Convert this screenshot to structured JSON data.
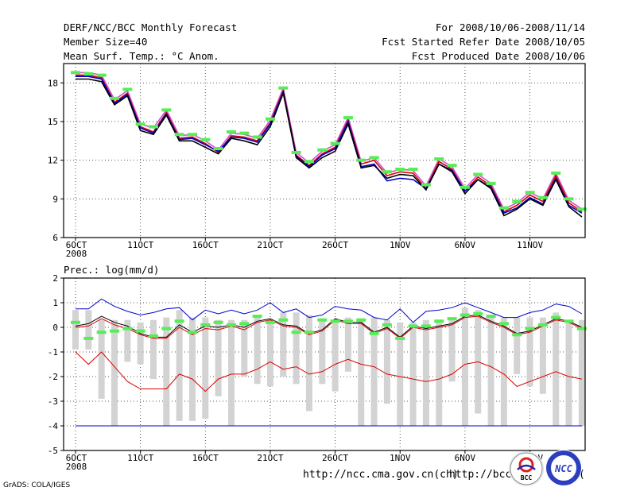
{
  "header": {
    "title": "DERF/NCC/BCC Monthly Forecast",
    "member_size": "Member Size=40",
    "variable": "Mean Surf. Temp.: °C Anom.",
    "period": "For 2008/10/06-2008/11/14",
    "started": "Fcst Started Refer Date 2008/10/05",
    "produced": "Fcst Produced Date 2008/10/06"
  },
  "footer": {
    "url1": "http://ncc.cma.gov.cn(ch)",
    "url2": "http://bcc.",
    "url2_tail": "(",
    "grads": "GrADS: COLA/IGES",
    "logo_bcc": "BCC",
    "logo_ncc": "NCC"
  },
  "colors": {
    "blue": "#0000cc",
    "red": "#dd0000",
    "pink": "#cc55cc",
    "green": "#55ee55",
    "gray": "#d3d3d3",
    "black": "#000000"
  },
  "chart_data": [
    {
      "type": "line",
      "title": "Mean Surf. Temp.: °C Anom.",
      "ylim": [
        6,
        19.5
      ],
      "yticks": [
        6,
        9,
        12,
        15,
        18
      ],
      "xticks": [
        0,
        5,
        10,
        15,
        20,
        25,
        30,
        35
      ],
      "xticklabels": [
        "6OCT",
        "11OCT",
        "16OCT",
        "21OCT",
        "26OCT",
        "1NOV",
        "6NOV",
        "11NOV"
      ],
      "xsublabel": "2008",
      "grid": true,
      "x": [
        0,
        1,
        2,
        3,
        4,
        5,
        6,
        7,
        8,
        9,
        10,
        11,
        12,
        13,
        14,
        15,
        16,
        17,
        18,
        19,
        20,
        21,
        22,
        23,
        24,
        25,
        26,
        27,
        28,
        29,
        30,
        31,
        32,
        33,
        34,
        35,
        36,
        37,
        38,
        39
      ],
      "series": [
        {
          "name": "upper",
          "color": "pink",
          "values": [
            18.8,
            18.8,
            18.6,
            16.7,
            17.4,
            14.8,
            14.5,
            15.9,
            13.9,
            14.0,
            13.5,
            12.8,
            14.1,
            14.0,
            13.7,
            15.1,
            17.6,
            12.6,
            11.8,
            12.7,
            13.2,
            15.3,
            11.9,
            12.2,
            11.0,
            11.3,
            11.2,
            10.0,
            12.1,
            11.5,
            9.8,
            10.9,
            10.2,
            8.2,
            8.7,
            9.5,
            9.0,
            11.0,
            8.9,
            8.2
          ]
        },
        {
          "name": "mid",
          "color": "red",
          "values": [
            18.6,
            18.6,
            18.4,
            16.5,
            17.2,
            14.6,
            14.2,
            15.7,
            13.7,
            13.8,
            13.3,
            12.6,
            13.9,
            13.8,
            13.5,
            14.9,
            17.4,
            12.4,
            11.6,
            12.5,
            13.0,
            15.1,
            11.7,
            12.0,
            10.8,
            11.1,
            11.0,
            9.8,
            11.9,
            11.3,
            9.6,
            10.7,
            10.0,
            8.0,
            8.5,
            9.3,
            8.8,
            10.8,
            8.7,
            8.0
          ]
        },
        {
          "name": "blue",
          "color": "blue",
          "values": [
            18.5,
            18.5,
            18.3,
            16.4,
            17.1,
            14.5,
            14.1,
            15.6,
            13.6,
            13.7,
            13.2,
            12.7,
            13.8,
            13.7,
            13.4,
            14.8,
            17.3,
            12.3,
            11.5,
            12.4,
            12.9,
            15.0,
            11.5,
            11.7,
            10.4,
            10.6,
            10.5,
            9.8,
            11.7,
            11.2,
            9.6,
            10.5,
            9.9,
            7.9,
            8.3,
            9.1,
            8.6,
            10.6,
            8.5,
            7.9
          ]
        },
        {
          "name": "lower",
          "color": "black",
          "values": [
            18.3,
            18.3,
            18.1,
            16.3,
            17.0,
            14.3,
            14.0,
            15.5,
            13.5,
            13.5,
            13.0,
            12.5,
            13.7,
            13.5,
            13.2,
            14.6,
            17.2,
            12.2,
            11.4,
            12.2,
            12.7,
            14.8,
            11.4,
            11.6,
            10.6,
            10.9,
            10.8,
            9.7,
            11.7,
            11.1,
            9.4,
            10.5,
            9.8,
            7.7,
            8.2,
            9.0,
            8.5,
            10.5,
            8.4,
            7.6
          ]
        }
      ],
      "markers": {
        "name": "obs",
        "color": "green",
        "values": [
          18.8,
          18.7,
          18.6,
          16.8,
          17.5,
          14.8,
          14.6,
          15.9,
          14.0,
          14.0,
          13.6,
          12.9,
          14.2,
          14.1,
          13.8,
          15.2,
          17.6,
          12.6,
          11.9,
          12.8,
          13.3,
          15.3,
          12.0,
          12.2,
          11.1,
          11.3,
          11.3,
          10.1,
          12.1,
          11.6,
          9.9,
          10.9,
          10.2,
          8.3,
          8.8,
          9.5,
          9.1,
          11.0,
          9.0,
          8.2
        ]
      }
    },
    {
      "type": "line",
      "title": "Prec.: log(mm/d)",
      "ylim": [
        -5,
        2
      ],
      "yticks": [
        -5,
        -4,
        -3,
        -2,
        -1,
        0,
        1,
        2
      ],
      "xticks": [
        0,
        5,
        10,
        15,
        20,
        25,
        30,
        35
      ],
      "xticklabels": [
        "6OCT",
        "11OCT",
        "16OCT",
        "21OCT",
        "26OCT",
        "1NOV",
        "6NOV",
        "11NOV"
      ],
      "xsublabel": "2008",
      "grid": true,
      "x": [
        0,
        1,
        2,
        3,
        4,
        5,
        6,
        7,
        8,
        9,
        10,
        11,
        12,
        13,
        14,
        15,
        16,
        17,
        18,
        19,
        20,
        21,
        22,
        23,
        24,
        25,
        26,
        27,
        28,
        29,
        30,
        31,
        32,
        33,
        34,
        35,
        36,
        37,
        38,
        39
      ],
      "bars": {
        "name": "ensemble spread",
        "color": "gray",
        "low": [
          -0.9,
          -0.9,
          -2.9,
          -4.0,
          -1.4,
          -1.5,
          -2.1,
          -4.0,
          -3.8,
          -3.8,
          -3.7,
          -2.8,
          -4.0,
          -2.0,
          -2.3,
          -2.4,
          -2.0,
          -2.3,
          -3.4,
          -2.3,
          -2.6,
          -1.8,
          -4.0,
          -4.0,
          -3.1,
          -4.0,
          -4.0,
          -4.0,
          -4.0,
          -2.2,
          -4.0,
          -3.5,
          -4.0,
          -4.0,
          -1.9,
          -2.4,
          -2.7,
          -4.0,
          -4.0,
          -4.0
        ],
        "high": [
          0.7,
          0.7,
          0.3,
          0.3,
          0.3,
          0.2,
          0.3,
          0.4,
          0.7,
          0.4,
          0.4,
          0.3,
          0.3,
          0.3,
          0.5,
          0.3,
          0.6,
          0.6,
          0.5,
          0.3,
          0.3,
          0.4,
          0.3,
          0.4,
          0.3,
          0.2,
          0.2,
          0.3,
          0.3,
          0.3,
          0.8,
          0.7,
          0.4,
          0.4,
          0.4,
          0.4,
          0.4,
          0.6,
          0.3,
          0.3
        ]
      },
      "series": [
        {
          "name": "max",
          "color": "blue",
          "values": [
            0.75,
            0.75,
            1.15,
            0.85,
            0.65,
            0.5,
            0.6,
            0.75,
            0.8,
            0.3,
            0.7,
            0.55,
            0.7,
            0.55,
            0.7,
            1.0,
            0.6,
            0.75,
            0.4,
            0.5,
            0.85,
            0.75,
            0.7,
            0.4,
            0.3,
            0.75,
            0.2,
            0.65,
            0.7,
            0.8,
            1.0,
            0.8,
            0.6,
            0.4,
            0.4,
            0.6,
            0.7,
            0.95,
            0.85,
            0.55
          ]
        },
        {
          "name": "ensemble mean",
          "color": "black",
          "values": [
            0.05,
            0.15,
            0.45,
            0.2,
            0.05,
            -0.25,
            -0.4,
            -0.4,
            0.1,
            -0.2,
            0.05,
            0.0,
            0.1,
            0.0,
            0.25,
            0.35,
            0.1,
            0.05,
            -0.25,
            -0.1,
            0.35,
            0.2,
            0.2,
            -0.2,
            0.0,
            -0.4,
            0.05,
            -0.05,
            0.05,
            0.15,
            0.45,
            0.5,
            0.25,
            0.05,
            -0.25,
            -0.15,
            0.1,
            0.35,
            0.25,
            0.0
          ]
        },
        {
          "name": "median",
          "color": "red",
          "values": [
            0.0,
            0.05,
            0.35,
            0.1,
            -0.05,
            -0.3,
            -0.45,
            -0.45,
            0.0,
            -0.3,
            -0.05,
            -0.1,
            0.05,
            -0.1,
            0.2,
            0.3,
            0.05,
            0.0,
            -0.3,
            -0.15,
            0.3,
            0.15,
            0.15,
            -0.25,
            -0.05,
            -0.45,
            0.0,
            -0.1,
            0.0,
            0.1,
            0.4,
            0.45,
            0.2,
            0.0,
            -0.3,
            -0.2,
            0.05,
            0.3,
            0.2,
            -0.05
          ]
        },
        {
          "name": "lower",
          "color": "red",
          "values": [
            -1.0,
            -1.5,
            -1.0,
            -1.6,
            -2.2,
            -2.5,
            -2.5,
            -2.5,
            -1.9,
            -2.1,
            -2.6,
            -2.1,
            -1.9,
            -1.9,
            -1.7,
            -1.4,
            -1.7,
            -1.6,
            -1.9,
            -1.8,
            -1.5,
            -1.3,
            -1.5,
            -1.6,
            -1.9,
            -2.0,
            -2.1,
            -2.2,
            -2.1,
            -1.9,
            -1.5,
            -1.4,
            -1.6,
            -1.9,
            -2.4,
            -2.2,
            -2.0,
            -1.8,
            -2.0,
            -2.1
          ]
        },
        {
          "name": "floor",
          "color": "blue",
          "values": [
            -4.0,
            -4.0,
            -4.0,
            -4.0,
            -4.0,
            -4.0,
            -4.0,
            -4.0,
            -4.0,
            -4.0,
            -4.0,
            -4.0,
            -4.0,
            -4.0,
            -4.0,
            -4.0,
            -4.0,
            -4.0,
            -4.0,
            -4.0,
            -4.0,
            -4.0,
            -4.0,
            -4.0,
            -4.0,
            -4.0,
            -4.0,
            -4.0,
            -4.0,
            -4.0,
            -4.0,
            -4.0,
            -4.0,
            -4.0,
            -4.0,
            -4.0,
            -4.0,
            -4.0,
            -4.0,
            -4.0
          ]
        }
      ],
      "markers": {
        "name": "obs",
        "color": "green",
        "values": [
          0.2,
          -0.45,
          -0.2,
          -0.15,
          -0.05,
          -0.15,
          -0.35,
          -0.05,
          0.25,
          -0.2,
          0.1,
          0.2,
          0.1,
          0.15,
          0.45,
          0.2,
          0.3,
          -0.2,
          -0.2,
          0.3,
          0.25,
          0.25,
          0.3,
          -0.25,
          0.1,
          -0.45,
          0.05,
          0.05,
          0.25,
          0.35,
          0.5,
          0.55,
          0.45,
          0.15,
          -0.3,
          -0.05,
          0.1,
          0.4,
          0.25,
          -0.05
        ]
      }
    }
  ]
}
